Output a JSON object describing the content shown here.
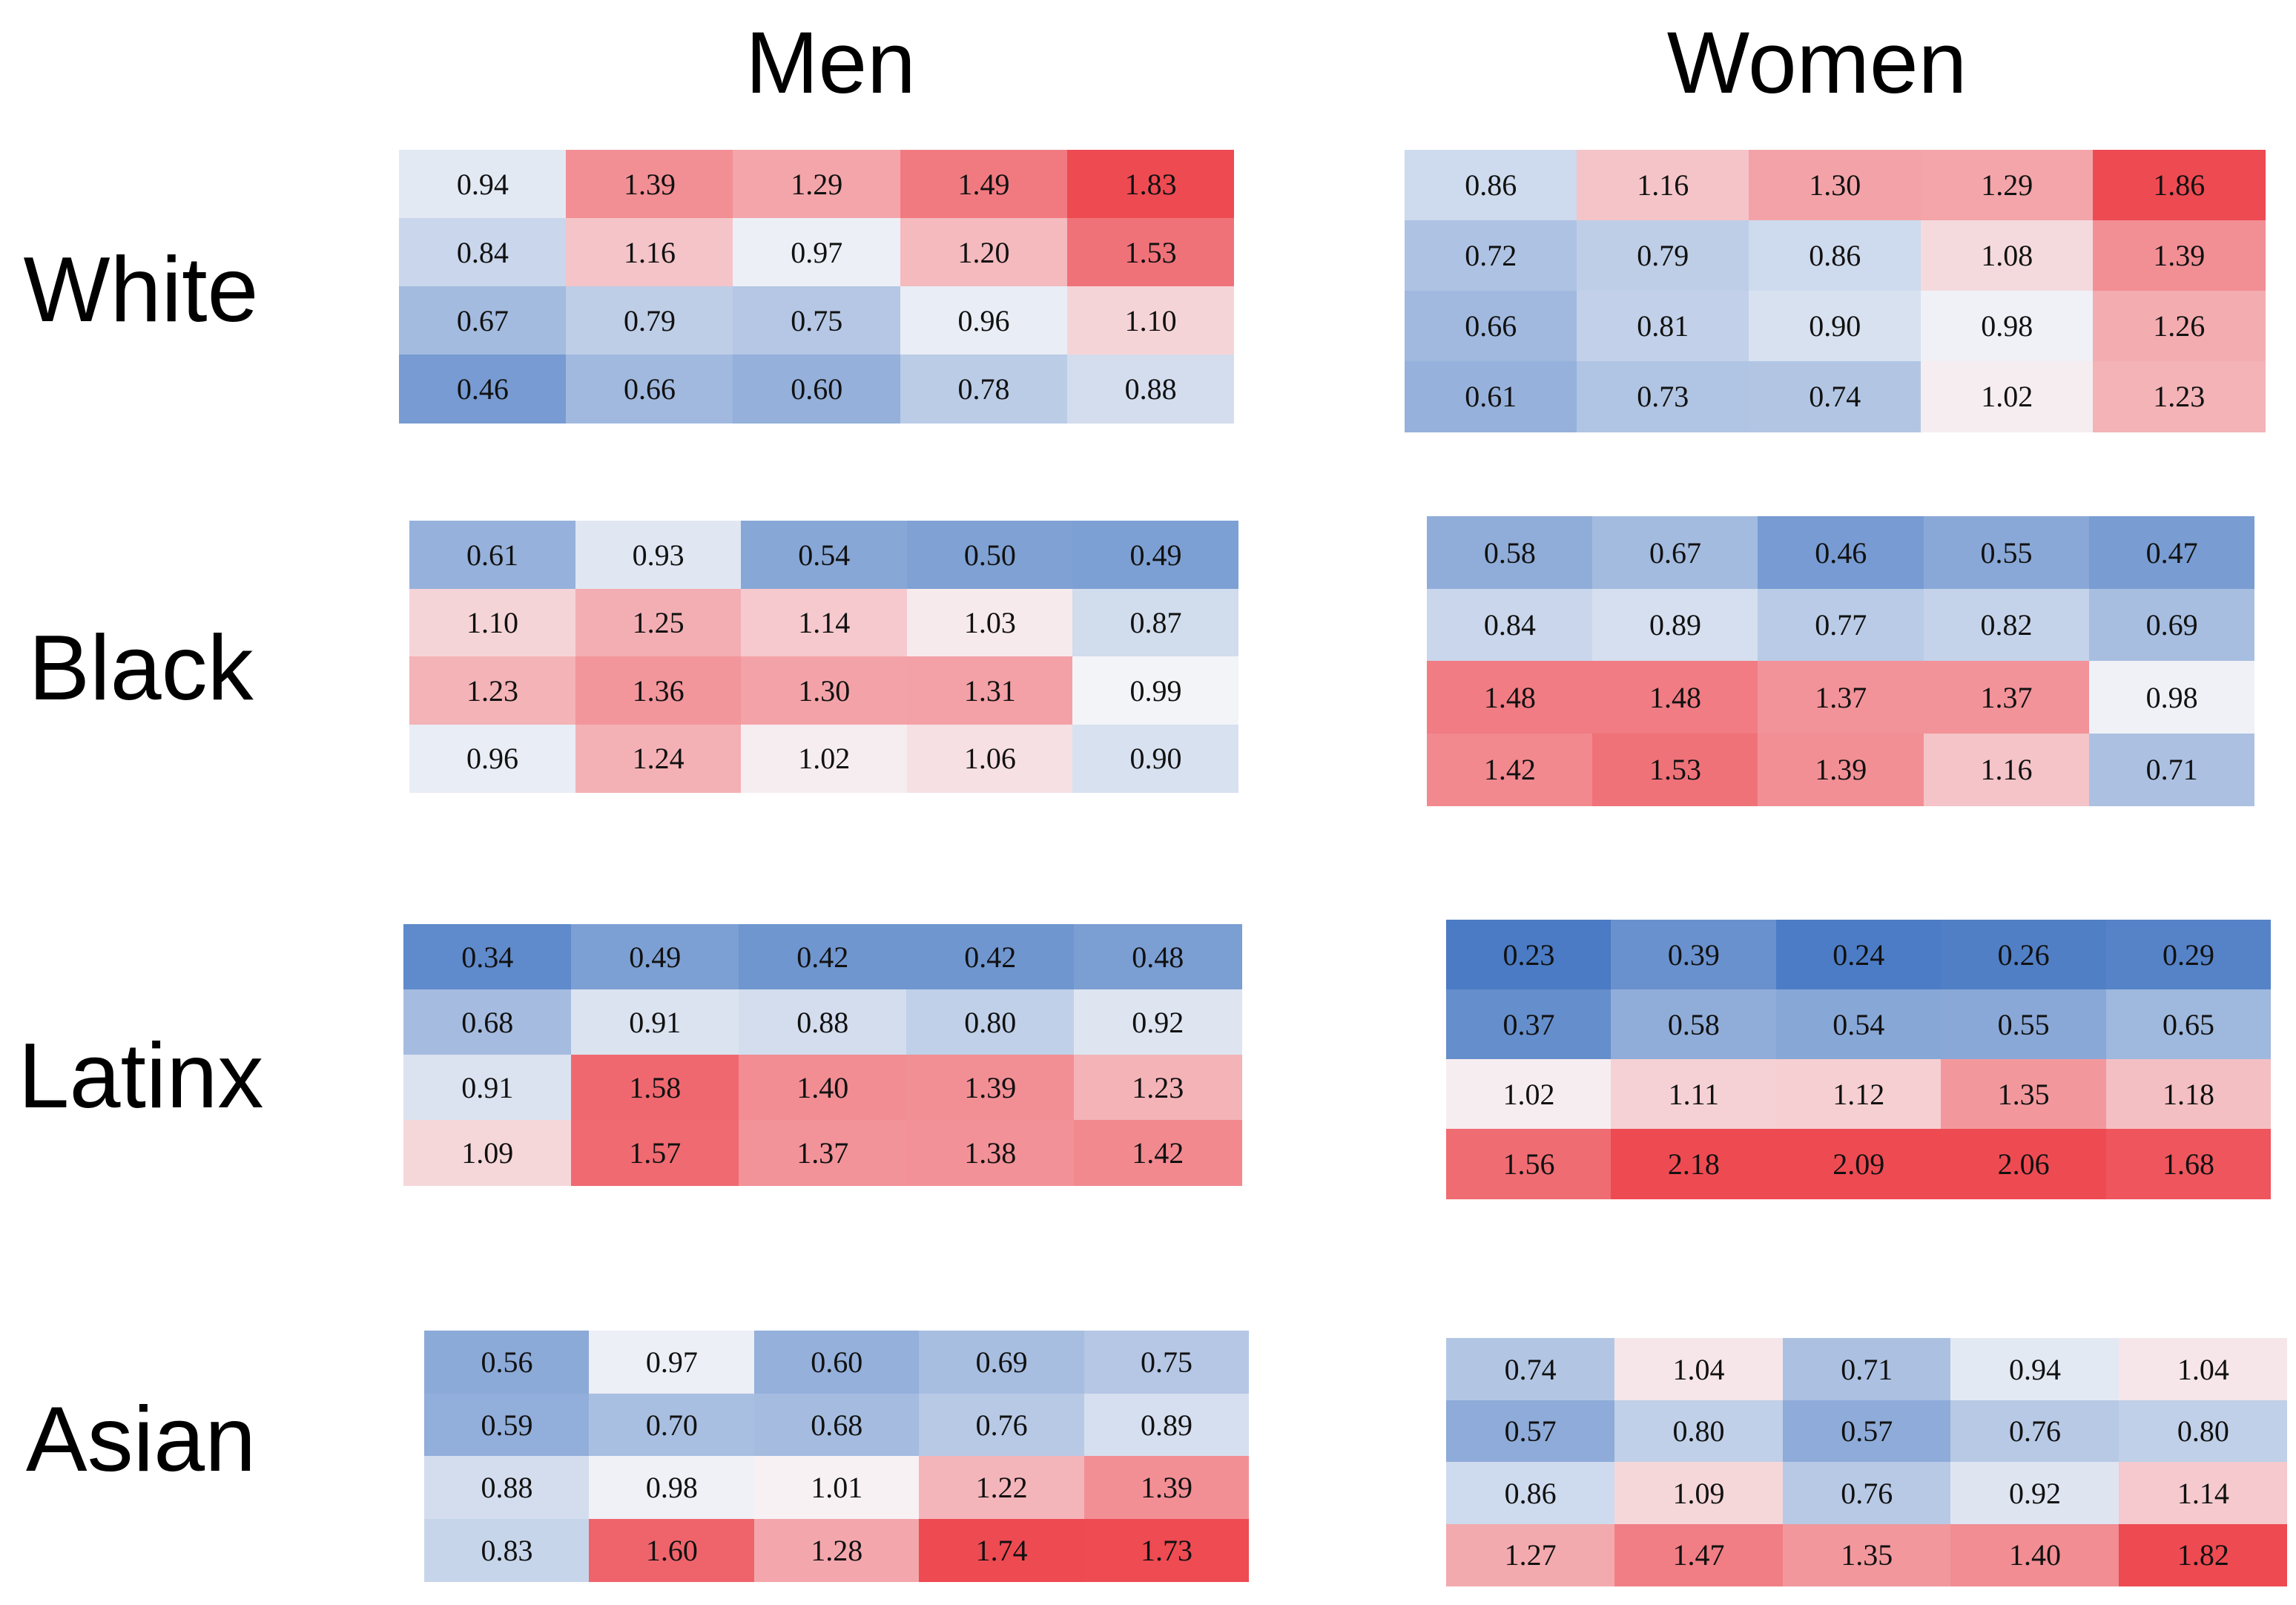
{
  "titles": {
    "men": "Men",
    "women": "Women"
  },
  "groups": {
    "white": "White",
    "black": "Black",
    "latinx": "Latinx",
    "asian": "Asian"
  },
  "colors": {
    "low": "#4a7bc4",
    "mid": "#f7f7f9",
    "high": "#ee4a52"
  },
  "chart_data": {
    "type": "heatmap",
    "title": "",
    "color_scale": {
      "min": 0.23,
      "center": 1.0,
      "max": 2.18
    },
    "panels": [
      {
        "group": "White",
        "sex": "Men",
        "values": [
          [
            0.94,
            1.39,
            1.29,
            1.49,
            1.83
          ],
          [
            0.84,
            1.16,
            0.97,
            1.2,
            1.53
          ],
          [
            0.67,
            0.79,
            0.75,
            0.96,
            1.1
          ],
          [
            0.46,
            0.66,
            0.6,
            0.78,
            0.88
          ]
        ]
      },
      {
        "group": "White",
        "sex": "Women",
        "values": [
          [
            0.86,
            1.16,
            1.3,
            1.29,
            1.86
          ],
          [
            0.72,
            0.79,
            0.86,
            1.08,
            1.39
          ],
          [
            0.66,
            0.81,
            0.9,
            0.98,
            1.26
          ],
          [
            0.61,
            0.73,
            0.74,
            1.02,
            1.23
          ]
        ]
      },
      {
        "group": "Black",
        "sex": "Men",
        "values": [
          [
            0.61,
            0.93,
            0.54,
            0.5,
            0.49
          ],
          [
            1.1,
            1.25,
            1.14,
            1.03,
            0.87
          ],
          [
            1.23,
            1.36,
            1.3,
            1.31,
            0.99
          ],
          [
            0.96,
            1.24,
            1.02,
            1.06,
            0.9
          ]
        ]
      },
      {
        "group": "Black",
        "sex": "Women",
        "values": [
          [
            0.58,
            0.67,
            0.46,
            0.55,
            0.47
          ],
          [
            0.84,
            0.89,
            0.77,
            0.82,
            0.69
          ],
          [
            1.48,
            1.48,
            1.37,
            1.37,
            0.98
          ],
          [
            1.42,
            1.53,
            1.39,
            1.16,
            0.71
          ]
        ]
      },
      {
        "group": "Latinx",
        "sex": "Men",
        "values": [
          [
            0.34,
            0.49,
            0.42,
            0.42,
            0.48
          ],
          [
            0.68,
            0.91,
            0.88,
            0.8,
            0.92
          ],
          [
            0.91,
            1.58,
            1.4,
            1.39,
            1.23
          ],
          [
            1.09,
            1.57,
            1.37,
            1.38,
            1.42
          ]
        ]
      },
      {
        "group": "Latinx",
        "sex": "Women",
        "values": [
          [
            0.23,
            0.39,
            0.24,
            0.26,
            0.29
          ],
          [
            0.37,
            0.58,
            0.54,
            0.55,
            0.65
          ],
          [
            1.02,
            1.11,
            1.12,
            1.35,
            1.18
          ],
          [
            1.56,
            2.18,
            2.09,
            2.06,
            1.68
          ]
        ]
      },
      {
        "group": "Asian",
        "sex": "Men",
        "values": [
          [
            0.56,
            0.97,
            0.6,
            0.69,
            0.75
          ],
          [
            0.59,
            0.7,
            0.68,
            0.76,
            0.89
          ],
          [
            0.88,
            0.98,
            1.01,
            1.22,
            1.39
          ],
          [
            0.83,
            1.6,
            1.28,
            1.74,
            1.73
          ]
        ]
      },
      {
        "group": "Asian",
        "sex": "Women",
        "values": [
          [
            0.74,
            1.04,
            0.71,
            0.94,
            1.04
          ],
          [
            0.57,
            0.8,
            0.57,
            0.76,
            0.8
          ],
          [
            0.86,
            1.09,
            0.76,
            0.92,
            1.14
          ],
          [
            1.27,
            1.47,
            1.35,
            1.4,
            1.82
          ]
        ]
      }
    ]
  }
}
